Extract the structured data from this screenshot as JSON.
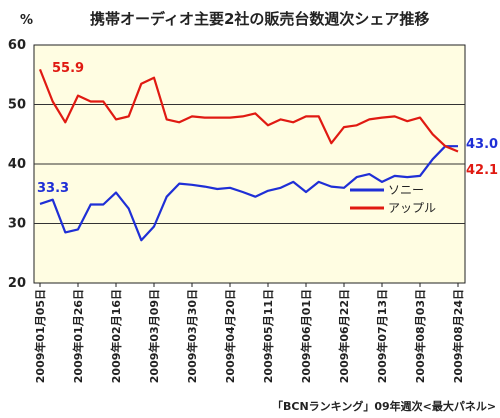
{
  "chart_data": {
    "type": "line",
    "title": "携帯オーディオ主要2社の販売台数週次シェア推移",
    "ylabel": "%",
    "ylim": [
      20,
      60
    ],
    "yticks": [
      20,
      30,
      40,
      50,
      60
    ],
    "grid": true,
    "x": [
      "2009年01月05日",
      "2009年01月12日",
      "2009年01月19日",
      "2009年01月26日",
      "2009年02月02日",
      "2009年02月09日",
      "2009年02月16日",
      "2009年02月23日",
      "2009年03月02日",
      "2009年03月09日",
      "2009年03月16日",
      "2009年03月23日",
      "2009年03月30日",
      "2009年04月06日",
      "2009年04月13日",
      "2009年04月20日",
      "2009年04月27日",
      "2009年05月04日",
      "2009年05月11日",
      "2009年05月18日",
      "2009年05月25日",
      "2009年06月01日",
      "2009年06月08日",
      "2009年06月15日",
      "2009年06月22日",
      "2009年06月29日",
      "2009年07月06日",
      "2009年07月13日",
      "2009年07月20日",
      "2009年07月27日",
      "2009年08月03日",
      "2009年08月10日",
      "2009年08月17日",
      "2009年08月24日"
    ],
    "xtick_labels": [
      "2009年01月05日",
      "2009年01月26日",
      "2009年02月16日",
      "2009年03月09日",
      "2009年03月30日",
      "2009年04月20日",
      "2009年05月11日",
      "2009年06月01日",
      "2009年06月22日",
      "2009年07月13日",
      "2009年08月03日",
      "2009年08月24日"
    ],
    "series": [
      {
        "name": "ソニー",
        "color": "#1f2fd6",
        "values": [
          33.3,
          34.0,
          28.5,
          29.0,
          33.2,
          33.2,
          35.2,
          32.5,
          27.2,
          29.5,
          34.5,
          36.7,
          36.5,
          36.2,
          35.8,
          36.0,
          35.3,
          34.5,
          35.5,
          36.0,
          37.0,
          35.3,
          37.0,
          36.2,
          36.0,
          37.8,
          38.3,
          37.0,
          38.0,
          37.8,
          38.0,
          40.8,
          43.0,
          43.0
        ]
      },
      {
        "name": "アップル",
        "color": "#e01a12",
        "values": [
          55.9,
          50.5,
          47.0,
          51.5,
          50.5,
          50.5,
          47.5,
          48.0,
          53.5,
          54.5,
          47.5,
          47.0,
          48.0,
          47.8,
          47.8,
          47.8,
          48.0,
          48.5,
          46.5,
          47.5,
          47.0,
          48.0,
          48.0,
          43.5,
          46.2,
          46.5,
          47.5,
          47.8,
          48.0,
          47.2,
          47.8,
          45.0,
          43.0,
          42.1
        ]
      }
    ],
    "annotations": {
      "sony_start": "33.3",
      "apple_start": "55.9",
      "sony_end": "43.0",
      "apple_end": "42.1"
    },
    "source": "「BCNランキング」09年週次<最大パネル>"
  }
}
